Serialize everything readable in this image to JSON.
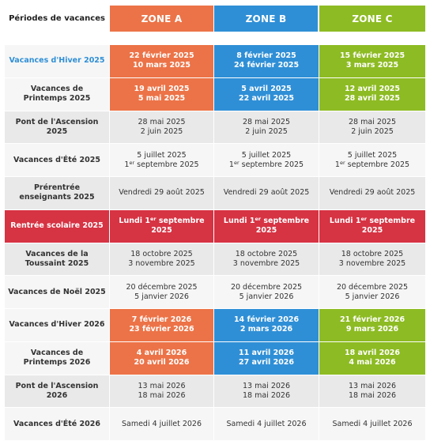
{
  "colors": {
    "zone_a": "#ec7347",
    "zone_b": "#2f8fd6",
    "zone_c": "#8dbb23",
    "rentree": "#d63343",
    "hiver_label": "#2f8fd6",
    "grey_row": "#e9e9e9",
    "light_row": "#f6f6f6"
  },
  "header": {
    "label": "Périodes de vacances",
    "zones": [
      "ZONE A",
      "ZONE B",
      "ZONE C"
    ]
  },
  "rows": [
    {
      "label": "Vacances d'Hiver 2025",
      "style": "colored",
      "label_color": "#2f8fd6",
      "cells": [
        [
          "22 février 2025",
          "10 mars 2025"
        ],
        [
          "8 février 2025",
          "24 février 2025"
        ],
        [
          "15 février 2025",
          "3 mars 2025"
        ]
      ]
    },
    {
      "label": "Vacances de Printemps 2025",
      "style": "colored",
      "cells": [
        [
          "19 avril 2025",
          "5 mai 2025"
        ],
        [
          "5 avril 2025",
          "22 avril 2025"
        ],
        [
          "12 avril 2025",
          "28 avril 2025"
        ]
      ]
    },
    {
      "label": "Pont de l'Ascension 2025",
      "style": "grey",
      "cells": [
        [
          "28 mai 2025",
          "2 juin 2025"
        ],
        [
          "28 mai 2025",
          "2 juin 2025"
        ],
        [
          "28 mai 2025",
          "2 juin 2025"
        ]
      ]
    },
    {
      "label": "Vacances d'Été 2025",
      "style": "light",
      "cells": [
        [
          "5 juillet 2025",
          "1er septembre 2025"
        ],
        [
          "5 juillet 2025",
          "1er septembre 2025"
        ],
        [
          "5 juillet 2025",
          "1er septembre 2025"
        ]
      ]
    },
    {
      "label": "Prérentrée enseignants 2025",
      "style": "grey",
      "cells": [
        [
          "Vendredi 29 août 2025"
        ],
        [
          "Vendredi 29 août 2025"
        ],
        [
          "Vendredi 29 août 2025"
        ]
      ]
    },
    {
      "label": "Rentrée scolaire 2025",
      "style": "rentree",
      "cells": [
        [
          "Lundi 1er septembre",
          "2025"
        ],
        [
          "Lundi 1er septembre",
          "2025"
        ],
        [
          "Lundi 1er septembre",
          "2025"
        ]
      ]
    },
    {
      "label": "Vacances de la Toussaint 2025",
      "style": "grey",
      "cells": [
        [
          "18 octobre 2025",
          "3 novembre 2025"
        ],
        [
          "18 octobre 2025",
          "3 novembre 2025"
        ],
        [
          "18 octobre 2025",
          "3 novembre 2025"
        ]
      ]
    },
    {
      "label": "Vacances de Noël 2025",
      "style": "light",
      "cells": [
        [
          "20 décembre 2025",
          "5 janvier 2026"
        ],
        [
          "20 décembre 2025",
          "5 janvier 2026"
        ],
        [
          "20 décembre 2025",
          "5 janvier 2026"
        ]
      ]
    },
    {
      "label": "Vacances d'Hiver 2026",
      "style": "colored",
      "cells": [
        [
          "7 février 2026",
          "23 février 2026"
        ],
        [
          "14 février 2026",
          "2 mars 2026"
        ],
        [
          "21 février 2026",
          "9 mars 2026"
        ]
      ]
    },
    {
      "label": "Vacances de Printemps 2026",
      "style": "colored",
      "cells": [
        [
          "4 avril 2026",
          "20 avril 2026"
        ],
        [
          "11 avril 2026",
          "27 avril 2026"
        ],
        [
          "18 avril 2026",
          "4 mai 2026"
        ]
      ]
    },
    {
      "label": "Pont de l'Ascension 2026",
      "style": "grey",
      "cells": [
        [
          "13 mai 2026",
          "18 mai 2026"
        ],
        [
          "13 mai 2026",
          "18 mai 2026"
        ],
        [
          "13 mai 2026",
          "18 mai 2026"
        ]
      ]
    },
    {
      "label": "Vacances d'Été 2026",
      "style": "light",
      "cells": [
        [
          "Samedi 4 juillet 2026"
        ],
        [
          "Samedi 4 juillet 2026"
        ],
        [
          "Samedi 4 juillet 2026"
        ]
      ]
    }
  ]
}
